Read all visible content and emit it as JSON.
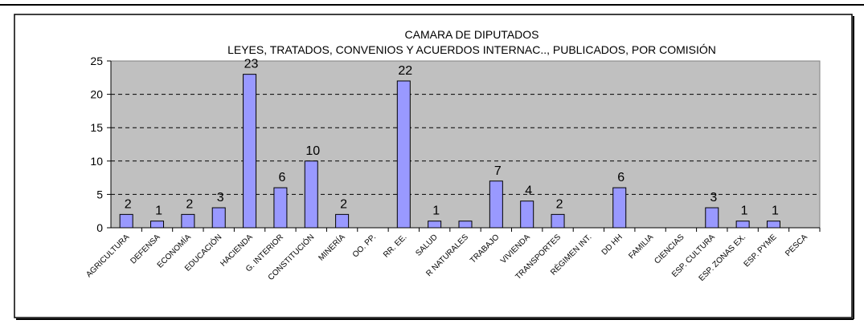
{
  "chart_data": {
    "type": "bar",
    "title": "CAMARA DE DIPUTADOS",
    "subtitle": "LEYES, TRATADOS, CONVENIOS Y ACUERDOS INTERNAC..,  PUBLICADOS, POR COMISIÓN",
    "categories": [
      "AGRICULTURA",
      "DEFENSA",
      "ECONOMÍA",
      "EDUCACIÓN",
      "HACIENDA",
      "G. INTERIOR",
      "CONSTITUCIÓN",
      "MINERÍA",
      "OO. PP.",
      "RR. EE.",
      "SALUD",
      "R NATURALES",
      "TRABAJO",
      "VIVIENDA",
      "TRANSPORTES",
      "RÉGIMEN INT.",
      "DD HH",
      "FAMILIA",
      "CIENCIAS",
      "ESP. CULTURA",
      "ESP. ZONAS EX.",
      "ESP. PYME",
      "PESCA"
    ],
    "values": [
      2,
      1,
      2,
      3,
      23,
      6,
      10,
      2,
      0,
      22,
      1,
      1,
      7,
      4,
      2,
      0,
      6,
      0,
      0,
      3,
      1,
      1,
      0
    ],
    "value_labels": [
      "2",
      "1",
      "2",
      "3",
      "23",
      "6",
      "10",
      "2",
      null,
      "22",
      "1",
      null,
      "7",
      "4",
      "2",
      null,
      "6",
      null,
      null,
      "3",
      "1",
      "1",
      null
    ],
    "color": "#9999ff",
    "ylim": [
      0,
      25
    ],
    "yticks": [
      0,
      5,
      10,
      15,
      20,
      25
    ],
    "grid": true
  }
}
